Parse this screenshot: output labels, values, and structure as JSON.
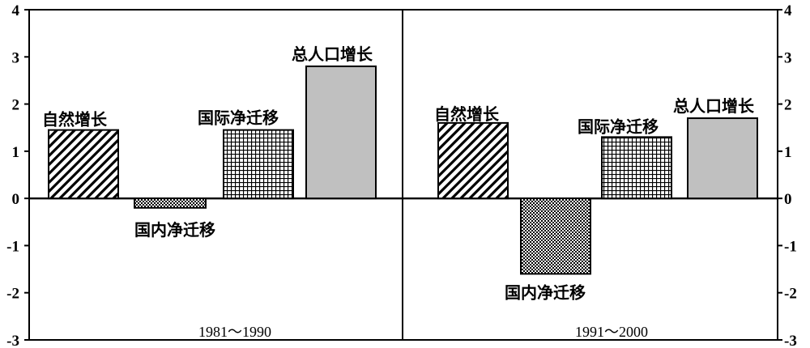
{
  "chart_data": {
    "type": "bar",
    "ylim": [
      -3,
      4
    ],
    "yticks": [
      "4",
      "3",
      "2",
      "1",
      "0",
      "-1",
      "-2",
      "-3"
    ],
    "grid": false,
    "panels": [
      {
        "period": "1981～1990",
        "categories": [
          "自然增长",
          "国内净迁移",
          "国际净迁移",
          "总人口增长"
        ],
        "values": [
          1.45,
          -0.2,
          1.45,
          2.8
        ],
        "patterns": [
          "diagonal-hatch",
          "dots",
          "grid",
          "solid-gray"
        ]
      },
      {
        "period": "1991～2000",
        "categories": [
          "自然增长",
          "国内净迁移",
          "国际净迁移",
          "总人口增长"
        ],
        "values": [
          1.6,
          -1.6,
          1.3,
          1.7
        ],
        "patterns": [
          "diagonal-hatch",
          "dots",
          "grid",
          "solid-gray"
        ]
      }
    ],
    "colors": {
      "axis": "#000000",
      "solid_gray": "#c0c0c0",
      "pattern_ink": "#000000"
    }
  }
}
